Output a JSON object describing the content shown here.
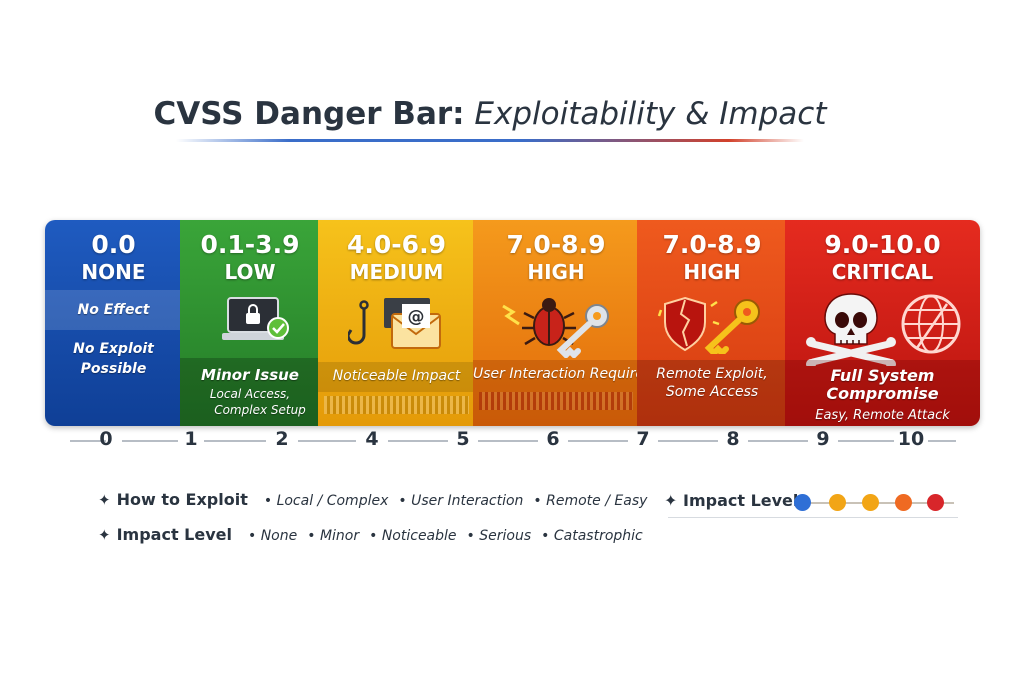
{
  "title": {
    "main": "CVSS Danger Bar:",
    "sub": "Exploitability & Impact"
  },
  "segments": [
    {
      "score": "0.0",
      "level": "NONE",
      "lines": [
        "No Effect",
        "No Exploit",
        "Possible"
      ],
      "color": "#1f5bc0"
    },
    {
      "score": "0.1-3.9",
      "level": "LOW",
      "lines": [
        "Minor Issue",
        "Local Access,",
        "Complex Setup"
      ],
      "color": "#3aa539"
    },
    {
      "score": "4.0-6.9",
      "level": "MEDIUM",
      "lines": [
        "Noticeable Impact"
      ],
      "color": "#f6c21b"
    },
    {
      "score": "7.0-8.9",
      "level": "HIGH",
      "lines": [
        "User Interaction Required"
      ],
      "color": "#f59a1c"
    },
    {
      "score": "7.0-8.9",
      "level": "HIGH",
      "lines": [
        "Remote Exploit,",
        "Some Access"
      ],
      "color": "#ef5a1e"
    },
    {
      "score": "9.0-10.0",
      "level": "CRITICAL",
      "lines": [
        "Full System",
        "Compromise",
        "Easy, Remote Attack"
      ],
      "color": "#e52b1f"
    }
  ],
  "axis": {
    "ticks": [
      "0",
      "1",
      "2",
      "4",
      "5",
      "6",
      "7",
      "8",
      "9",
      "10"
    ]
  },
  "legend": {
    "how_to_exploit": {
      "label": "How to Exploit",
      "items": [
        "Local / Complex",
        "User Interaction",
        "Remote / Easy"
      ]
    },
    "impact_level": {
      "label": "Impact Level",
      "items": [
        "None",
        "Minor",
        "Noticeable",
        "Serious",
        "Catastrophic"
      ]
    },
    "impact_scale": {
      "label": "Impact Level",
      "colors": [
        "#2f6fd6",
        "#f2a516",
        "#f2a516",
        "#ef6a22",
        "#d8262a"
      ]
    }
  },
  "icons": [
    "padlock-laptop-icon",
    "fishhook-icon",
    "email-icon",
    "bug-icon",
    "key-icon",
    "broken-shield-icon",
    "skull-crossbones-icon",
    "globe-icon"
  ]
}
